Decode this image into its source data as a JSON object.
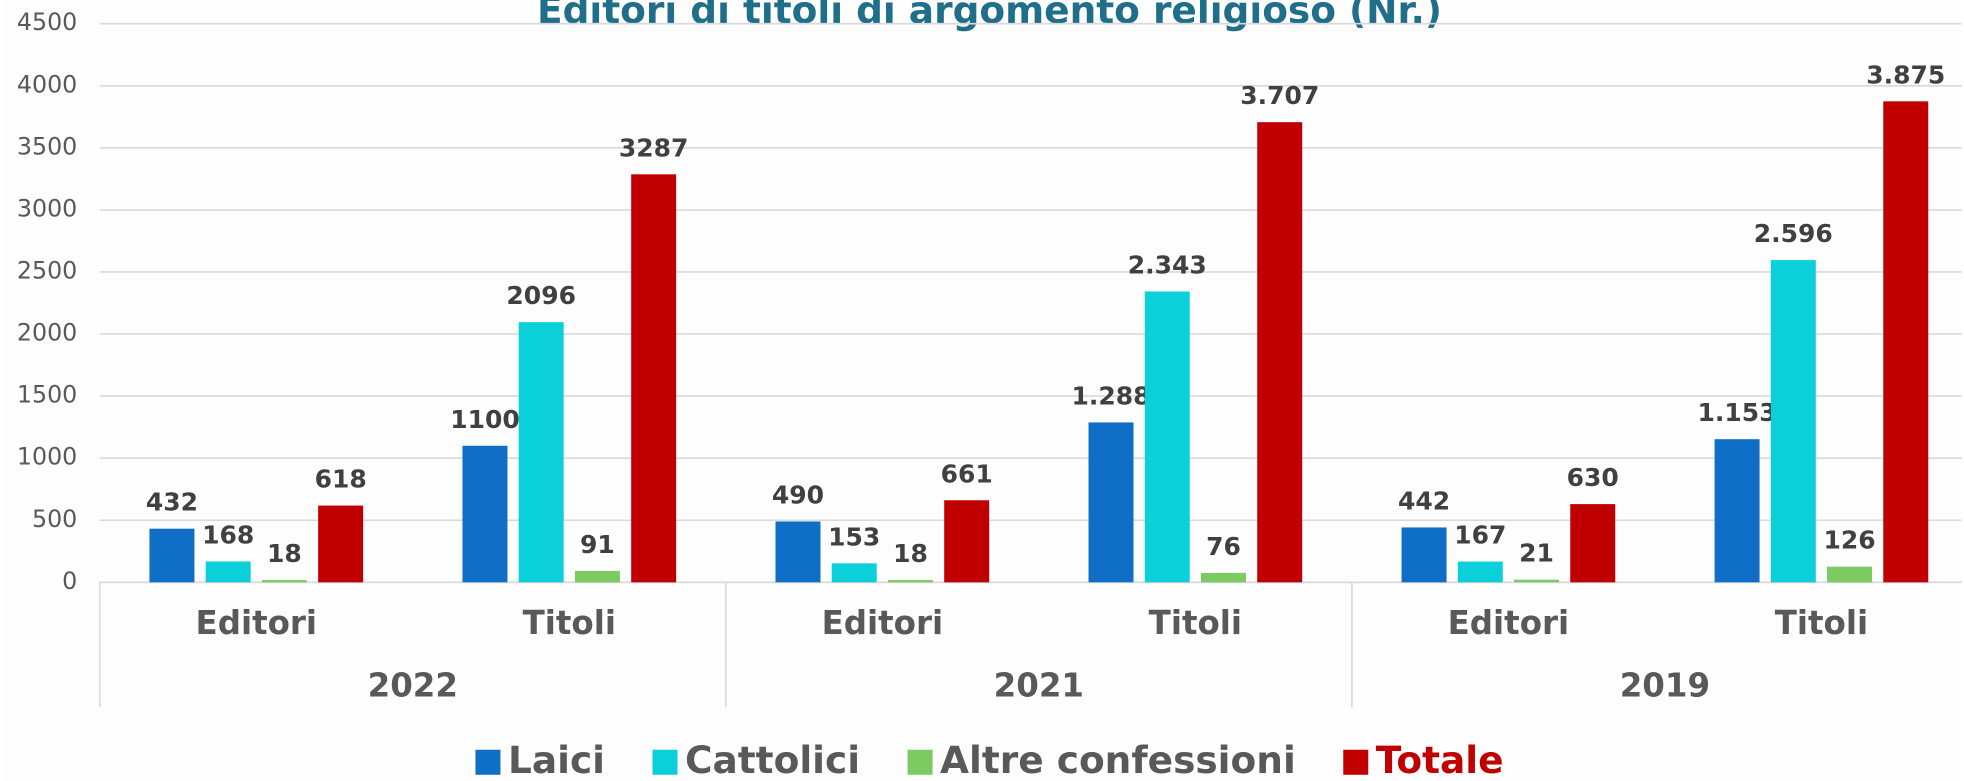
{
  "chart_data": {
    "type": "bar",
    "title": "Editori di titoli di argomento religioso (Nr.)",
    "categories": [
      "Editori",
      "Titoli",
      "Editori",
      "Titoli",
      "Editori",
      "Titoli"
    ],
    "groups": [
      "2022",
      "2021",
      "2019"
    ],
    "series": [
      {
        "name": "Laici",
        "color": "#0f6fc6",
        "legend_text_color": "#595959",
        "values": [
          432,
          1100,
          490,
          1288,
          442,
          1153
        ],
        "value_labels": [
          "432",
          "1100",
          "490",
          "1.288",
          "442",
          "1.153"
        ]
      },
      {
        "name": "Cattolici",
        "color": "#0bd0d9",
        "legend_text_color": "#595959",
        "values": [
          168,
          2096,
          153,
          2343,
          167,
          2596
        ],
        "value_labels": [
          "168",
          "2096",
          "153",
          "2.343",
          "167",
          "2.596"
        ]
      },
      {
        "name": "Altre confessioni",
        "color": "#7cca62",
        "legend_text_color": "#595959",
        "values": [
          18,
          91,
          18,
          76,
          21,
          126
        ],
        "value_labels": [
          "18",
          "91",
          "18",
          "76",
          "21",
          "126"
        ]
      },
      {
        "name": "Totale",
        "color": "#c00000",
        "legend_text_color": "#c00000",
        "values": [
          618,
          3287,
          661,
          3707,
          630,
          3875
        ],
        "value_labels": [
          "618",
          "3287",
          "661",
          "3.707",
          "630",
          "3.875"
        ]
      }
    ],
    "ylim": [
      0,
      4500
    ],
    "yticks": [
      0,
      500,
      1000,
      1500,
      2000,
      2500,
      3000,
      3500,
      4000,
      4500
    ],
    "grid": true,
    "legend": "bottom"
  }
}
